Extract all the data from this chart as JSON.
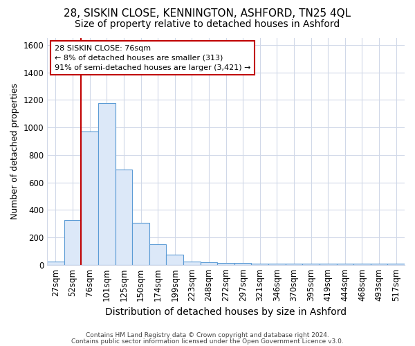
{
  "title1": "28, SISKIN CLOSE, KENNINGTON, ASHFORD, TN25 4QL",
  "title2": "Size of property relative to detached houses in Ashford",
  "xlabel": "Distribution of detached houses by size in Ashford",
  "ylabel": "Number of detached properties",
  "categories": [
    "27sqm",
    "52sqm",
    "76sqm",
    "101sqm",
    "125sqm",
    "150sqm",
    "174sqm",
    "199sqm",
    "223sqm",
    "248sqm",
    "272sqm",
    "297sqm",
    "321sqm",
    "346sqm",
    "370sqm",
    "395sqm",
    "419sqm",
    "444sqm",
    "468sqm",
    "493sqm",
    "517sqm"
  ],
  "values": [
    25,
    325,
    970,
    1175,
    695,
    305,
    150,
    75,
    25,
    20,
    15,
    12,
    8,
    8,
    8,
    8,
    8,
    8,
    8,
    8,
    8
  ],
  "bar_color": "#dce8f8",
  "bar_edge_color": "#5b9bd5",
  "highlight_index": 2,
  "highlight_line_color": "#c00000",
  "ylim": [
    0,
    1650
  ],
  "yticks": [
    0,
    200,
    400,
    600,
    800,
    1000,
    1200,
    1400,
    1600
  ],
  "annotation_text": "28 SISKIN CLOSE: 76sqm\n← 8% of detached houses are smaller (313)\n91% of semi-detached houses are larger (3,421) →",
  "annotation_box_color": "#ffffff",
  "annotation_box_edge": "#c00000",
  "footer1": "Contains HM Land Registry data © Crown copyright and database right 2024.",
  "footer2": "Contains public sector information licensed under the Open Government Licence v3.0.",
  "background_color": "#ffffff",
  "grid_color": "#d0d8e8",
  "title1_fontsize": 11,
  "title2_fontsize": 10,
  "xlabel_fontsize": 10,
  "ylabel_fontsize": 9,
  "tick_fontsize": 8.5,
  "footer_fontsize": 6.5
}
